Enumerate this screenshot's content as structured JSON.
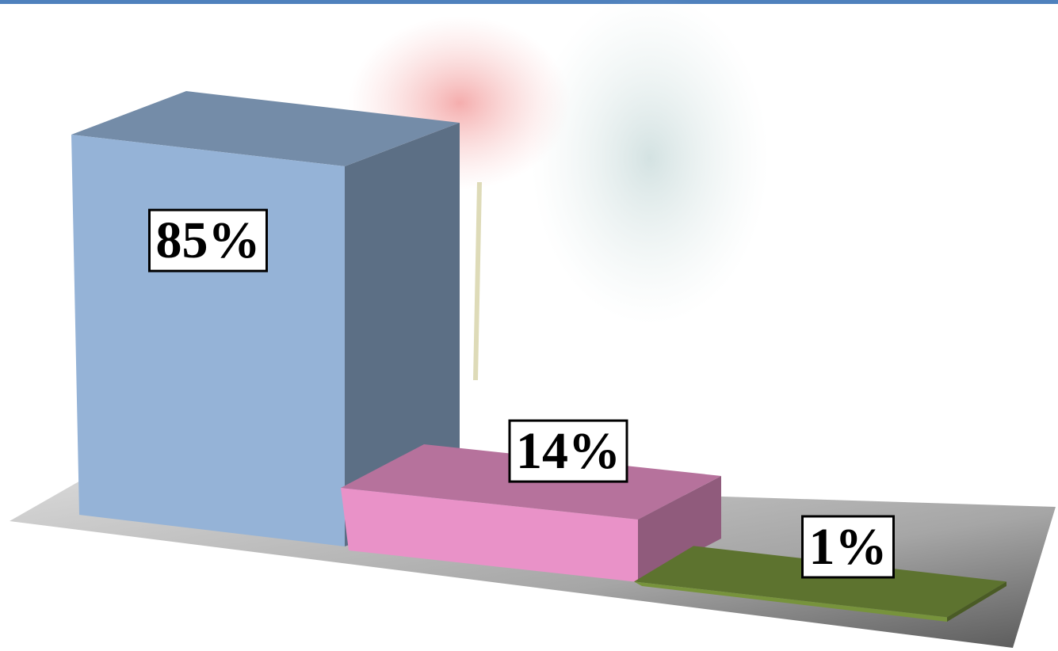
{
  "chart_data": {
    "type": "bar3d",
    "categories": [
      null,
      null,
      null
    ],
    "values": [
      85,
      14,
      1
    ],
    "value_labels": [
      "85%",
      "14%",
      "1%"
    ],
    "colors": [
      "#95b3d7",
      "#e992c8",
      "#77933c"
    ]
  }
}
